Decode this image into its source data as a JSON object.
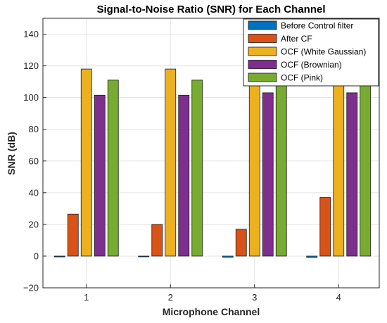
{
  "chart_data": {
    "type": "bar",
    "title": "Signal-to-Noise Ratio (SNR) for Each Channel",
    "xlabel": "Microphone Channel",
    "ylabel": "SNR (dB)",
    "categories": [
      "1",
      "2",
      "3",
      "4"
    ],
    "ylim": [
      -20,
      150
    ],
    "yticks": [
      -20,
      0,
      20,
      40,
      60,
      80,
      100,
      120,
      140
    ],
    "grid": true,
    "legend_position": "top-right",
    "series": [
      {
        "name": "Before Control filter",
        "color": "#0072BD",
        "values": [
          -0.5,
          -0.3,
          -0.7,
          -0.8
        ]
      },
      {
        "name": "After CF",
        "color": "#D95319",
        "values": [
          26.5,
          20,
          17,
          37
        ]
      },
      {
        "name": "OCF (White Gaussian)",
        "color": "#EDB120",
        "values": [
          118,
          118,
          118.5,
          118.5
        ]
      },
      {
        "name": "OCF (Brownian)",
        "color": "#7E2F8E",
        "values": [
          101.5,
          101.5,
          103,
          103
        ]
      },
      {
        "name": "OCF (Pink)",
        "color": "#77AC30",
        "values": [
          111,
          111,
          111,
          111
        ]
      }
    ]
  }
}
